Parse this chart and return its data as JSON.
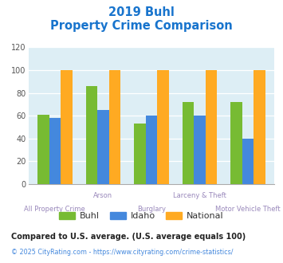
{
  "title_line1": "2019 Buhl",
  "title_line2": "Property Crime Comparison",
  "categories": [
    "All Property Crime",
    "Arson",
    "Burglary",
    "Larceny & Theft",
    "Motor Vehicle Theft"
  ],
  "cat_row": [
    1,
    0,
    1,
    0,
    1
  ],
  "series": {
    "Buhl": [
      61,
      86,
      53,
      72,
      72
    ],
    "Idaho": [
      58,
      65,
      60,
      60,
      40
    ],
    "National": [
      100,
      100,
      100,
      100,
      100
    ]
  },
  "colors": {
    "Buhl": "#77bb33",
    "Idaho": "#4488dd",
    "National": "#ffaa22"
  },
  "ylim": [
    0,
    120
  ],
  "yticks": [
    0,
    20,
    40,
    60,
    80,
    100,
    120
  ],
  "footnote1": "Compared to U.S. average. (U.S. average equals 100)",
  "footnote2": "© 2025 CityRating.com - https://www.cityrating.com/crime-statistics/",
  "title_color": "#1874cd",
  "label_color": "#9988bb",
  "footnote1_color": "#222222",
  "footnote2_color": "#4488dd",
  "bg_color": "#ddeef5",
  "bar_width": 0.24
}
